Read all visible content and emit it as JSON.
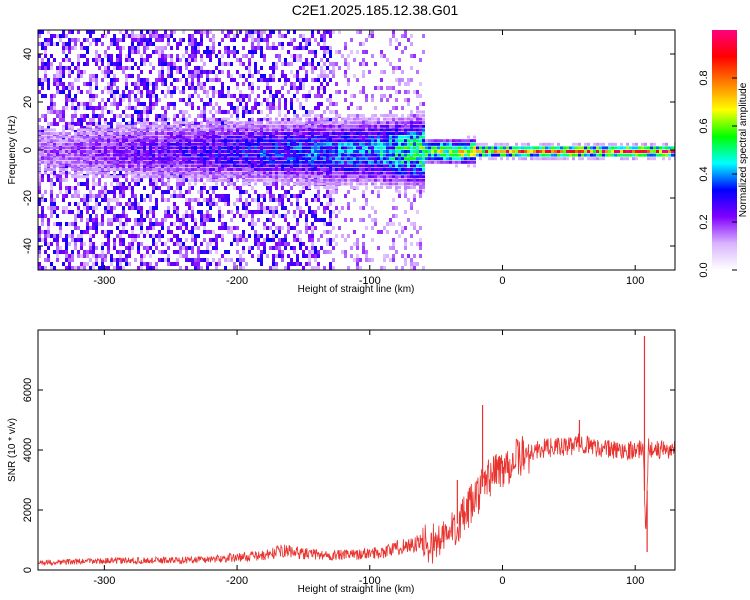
{
  "title": "C2E1.2025.185.12.38.G01",
  "chart_data": [
    {
      "type": "heatmap",
      "xlabel": "Height of straight line (km)",
      "ylabel": "Frequency (Hz)",
      "xlim": [
        -350,
        130
      ],
      "ylim": [
        -50,
        50
      ],
      "x_ticks": [
        -300,
        -200,
        -100,
        0,
        100
      ],
      "y_ticks": [
        -40,
        -20,
        0,
        20,
        40
      ],
      "colorbar": {
        "label": "Normalized spectral amplitude",
        "range": [
          0,
          1
        ],
        "ticks": [
          0.0,
          0.2,
          0.4,
          0.6,
          0.8
        ],
        "colormap": [
          "#ffffff",
          "#d9b3ff",
          "#8000ff",
          "#0000ff",
          "#00ffff",
          "#00ff00",
          "#ffff00",
          "#ff8000",
          "#ff0000",
          "#ff0080"
        ]
      },
      "description_points": [
        {
          "x": -330,
          "y": 20,
          "v": 0.2
        },
        {
          "x": -200,
          "y": 0,
          "v": 0.35
        },
        {
          "x": -100,
          "y": 0,
          "v": 0.45
        },
        {
          "x": -60,
          "y": 0,
          "v": 0.6
        },
        {
          "x": 0,
          "y": 0,
          "v": 0.9
        },
        {
          "x": 100,
          "y": 0,
          "v": 0.95
        }
      ]
    },
    {
      "type": "line",
      "xlabel": "Height of straight line (km)",
      "ylabel": "SNR (10 * v/v)",
      "xlim": [
        -350,
        130
      ],
      "ylim": [
        0,
        8000
      ],
      "x_ticks": [
        -300,
        -200,
        -100,
        0,
        100
      ],
      "y_ticks": [
        0,
        2000,
        4000,
        6000
      ],
      "series_color": "#e8332f",
      "series": [
        {
          "x": [
            -350,
            -320,
            -300,
            -280,
            -260,
            -240,
            -220,
            -200,
            -180,
            -165,
            -150,
            -130,
            -110,
            -90,
            -75,
            -60,
            -50,
            -42,
            -35,
            -28,
            -22,
            -16,
            -12,
            -8,
            0,
            10,
            20,
            30,
            40,
            50,
            58,
            65,
            75,
            85,
            95,
            103,
            106,
            108,
            110,
            115,
            120,
            130
          ],
          "y": [
            250,
            280,
            300,
            310,
            320,
            330,
            360,
            420,
            480,
            650,
            550,
            480,
            520,
            600,
            800,
            900,
            900,
            1100,
            1500,
            1800,
            2300,
            2700,
            3000,
            3200,
            3400,
            3700,
            3900,
            4050,
            4100,
            4100,
            4250,
            4150,
            4050,
            4000,
            4000,
            4000,
            4100,
            1200,
            4100,
            4000,
            4000,
            4000
          ]
        }
      ],
      "spikes": [
        {
          "x": -34,
          "y": 3000
        },
        {
          "x": -15,
          "y": 5500
        },
        {
          "x": 58,
          "y": 5000
        },
        {
          "x": 107,
          "y": 7800
        },
        {
          "x": 109,
          "y": 600
        }
      ]
    }
  ]
}
